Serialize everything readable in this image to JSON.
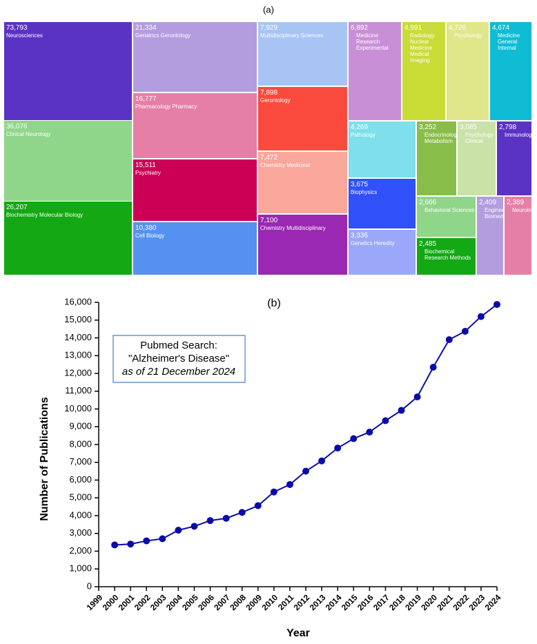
{
  "chart_data": [
    {
      "type": "treemap",
      "title": "(a)",
      "categories": [
        "Neurosciences",
        "Clinical Neurology",
        "Biochemistry Molecular Biology",
        "Geriatrics Gerontology",
        "Pharmacology Pharmacy",
        "Psychiatry",
        "Cell Biology",
        "Multidisciplinary Sciences",
        "Gerontology",
        "Chemistry Medicinal",
        "Chemistry Multidisciplinary",
        "Medicine Research Experimental",
        "Radiology Nuclear Medicine Medical Imaging",
        "Psychology",
        "Medicine General Internal",
        "Pathology",
        "Biophysics",
        "Genetics Heredity",
        "Endocrinology Metabolism",
        "Psychology Clinical",
        "Immunology",
        "Behavioral Sciences",
        "Biochemical Research Methods",
        "Engineering Biomedical",
        "Neuroimaging"
      ],
      "values": [
        73793,
        36076,
        26207,
        21334,
        16777,
        15511,
        10380,
        7929,
        7898,
        7472,
        7100,
        6892,
        4991,
        4726,
        4674,
        4269,
        3675,
        3336,
        3252,
        3085,
        2798,
        2666,
        2485,
        2409,
        2389
      ],
      "value_labels": [
        "73,793",
        "36,076",
        "26,207",
        "21,334",
        "16,777",
        "15,511",
        "10,380",
        "7,929",
        "7,898",
        "7,472",
        "7,100",
        "6,892",
        "4,991",
        "4,726",
        "4,674",
        "4,269",
        "3,675",
        "3,336",
        "3,252",
        "3,085",
        "2,798",
        "2,666",
        "2,485",
        "2,409",
        "2,389"
      ],
      "colors": [
        "#5b33c4",
        "#8fd68a",
        "#14a814",
        "#b39ddf",
        "#e67fa6",
        "#cc0055",
        "#5592ef",
        "#a8c4f5",
        "#fa4a3d",
        "#f9a79b",
        "#9a28b2",
        "#c98fd6",
        "#c9dc36",
        "#e0e68a",
        "#0fbcd4",
        "#7fdfea",
        "#3050fa",
        "#9ba8fa",
        "#89bd4a",
        "#c9e2a8",
        "#5b33c4",
        "#8fd68a",
        "#14a814",
        "#b39ddf",
        "#e67fa6"
      ]
    },
    {
      "type": "line",
      "title": "(b)",
      "x_label": "Year",
      "y_label": "Number of Publications",
      "annotation": [
        "Pubmed Search:",
        "\"Alzheimer's Disease\"",
        "as of 21 December 2024"
      ],
      "x": [
        2000,
        2001,
        2002,
        2003,
        2004,
        2005,
        2006,
        2007,
        2008,
        2009,
        2010,
        2011,
        2012,
        2013,
        2014,
        2015,
        2016,
        2017,
        2018,
        2019,
        2020,
        2021,
        2022,
        2023,
        2024
      ],
      "values": [
        2350,
        2400,
        2580,
        2700,
        3180,
        3400,
        3720,
        3850,
        4180,
        4560,
        5330,
        5750,
        6500,
        7080,
        7800,
        8330,
        8700,
        9340,
        9920,
        10680,
        12350,
        13900,
        14370,
        15200,
        15880
      ],
      "color": "#0a0aaa",
      "xlim": [
        1999,
        2024
      ],
      "xticks": [
        1999,
        2000,
        2001,
        2002,
        2003,
        2004,
        2005,
        2006,
        2007,
        2008,
        2009,
        2010,
        2011,
        2012,
        2013,
        2014,
        2015,
        2016,
        2017,
        2018,
        2019,
        2020,
        2021,
        2022,
        2023,
        2024
      ],
      "ylim": [
        0,
        16000
      ],
      "yticks": [
        0,
        {
          "value": 1000,
          "label": "1,000"
        },
        {
          "value": 2000,
          "label": "2,000"
        },
        {
          "value": 3000,
          "label": "3,000"
        },
        {
          "value": 4000,
          "label": "4,000"
        },
        {
          "value": 5000,
          "label": "5,000"
        },
        {
          "value": 6000,
          "label": "6,000"
        },
        {
          "value": 7000,
          "label": "7,000"
        },
        {
          "value": 8000,
          "label": "8,000"
        },
        {
          "value": 9000,
          "label": "9,000"
        },
        {
          "value": 10000,
          "label": "10,000"
        },
        {
          "value": 11000,
          "label": "11,000"
        },
        {
          "value": 12000,
          "label": "12,000"
        },
        {
          "value": 13000,
          "label": "13,000"
        },
        {
          "value": 14000,
          "label": "14,000"
        },
        {
          "value": 15000,
          "label": "15,000"
        },
        {
          "value": 16000,
          "label": "16,000"
        }
      ]
    }
  ]
}
